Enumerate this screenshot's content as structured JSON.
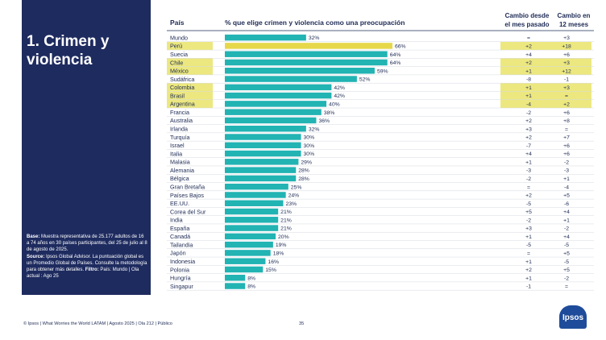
{
  "title": "1. Crimen y violencia",
  "notes": {
    "base_label": "Base:",
    "base_text": "Muestra representativa de 25.177 adultos de 16 a 74 años en 30 países participantes, del 25 de julio al 8 de agosto de 2025.",
    "source_label": "Source:",
    "source_text": "Ipsos Global Advisor. La puntuación global es un Promedio Global de Países. Consulte la metodología para obtener más detalles.",
    "filter_label": "Filtro:",
    "filter_text": "País: Mundo | Ola actual : Ago 25"
  },
  "footer": {
    "text": "© Ipsos | What Worries the World LATAM | Agosto 2025 | Ola 212 | Público",
    "page": "35"
  },
  "logo_text": "Ipsos",
  "colors": {
    "sidebar": "#1e2b5f",
    "bar": "#22b3b3",
    "bar_highlight": "#e6d84a",
    "row_highlight": "#ece87f",
    "text": "#1e2b55"
  },
  "chart_data": {
    "type": "bar",
    "orientation": "horizontal",
    "headers": {
      "country": "País",
      "bar": "% que elige crimen y violencia como una preocupación",
      "change_month_line1": "Cambio desde",
      "change_month_line2": "el mes pasado",
      "change_year_line1": "Cambio in",
      "change_year_line2": "12 meses"
    },
    "categories": [
      "Mundo",
      "Perú",
      "Suecia",
      "Chile",
      "México",
      "Sudáfrica",
      "Colombia",
      "Brasil",
      "Argentina",
      "Francia",
      "Australia",
      "Irlanda",
      "Turquía",
      "Israel",
      "Italia",
      "Malasia",
      "Alemania",
      "Bélgica",
      "Gran Bretaña",
      "Países Bajos",
      "EE.UU.",
      "Corea del Sur",
      "India",
      "España",
      "Canadá",
      "Tailandia",
      "Japón",
      "Indonesia",
      "Polonia",
      "Hungría",
      "Singapur"
    ],
    "values": [
      32,
      66,
      64,
      64,
      59,
      52,
      42,
      42,
      40,
      38,
      36,
      32,
      30,
      30,
      30,
      29,
      28,
      28,
      25,
      24,
      23,
      21,
      21,
      21,
      20,
      19,
      18,
      16,
      15,
      8,
      8
    ],
    "value_labels": [
      "32%",
      "66%",
      "64%",
      "64%",
      "59%",
      "52%",
      "42%",
      "42%",
      "40%",
      "38%",
      "36%",
      "32%",
      "30%",
      "30%",
      "30%",
      "29%",
      "28%",
      "28%",
      "25%",
      "24%",
      "23%",
      "21%",
      "21%",
      "21%",
      "20%",
      "19%",
      "18%",
      "16%",
      "15%",
      "8%",
      "8%"
    ],
    "highlighted": [
      false,
      true,
      false,
      true,
      true,
      false,
      true,
      true,
      true,
      false,
      false,
      false,
      false,
      false,
      false,
      false,
      false,
      false,
      false,
      false,
      false,
      false,
      false,
      false,
      false,
      false,
      false,
      false,
      false,
      false,
      false
    ],
    "highlighted_bars": [
      false,
      true,
      false,
      false,
      false,
      false,
      false,
      false,
      false,
      false,
      false,
      false,
      false,
      false,
      false,
      false,
      false,
      false,
      false,
      false,
      false,
      false,
      false,
      false,
      false,
      false,
      false,
      false,
      false,
      false,
      false
    ],
    "change_month": [
      "=",
      "+2",
      "+4",
      "+2",
      "+1",
      "-8",
      "+1",
      "+1",
      "-4",
      "-2",
      "+2",
      "+3",
      "+2",
      "-7",
      "+4",
      "+1",
      "-3",
      "-2",
      "=",
      "+2",
      "-5",
      "+5",
      "-2",
      "+3",
      "+1",
      "-5",
      "=",
      "+1",
      "+2",
      "+1",
      "-1"
    ],
    "change_year": [
      "+3",
      "+18",
      "+6",
      "+3",
      "+12",
      "-1",
      "+3",
      "=",
      "+2",
      "+6",
      "+8",
      "=",
      "+7",
      "+6",
      "+6",
      "-2",
      "-3",
      "+1",
      "-4",
      "+5",
      "-6",
      "+4",
      "+1",
      "-2",
      "+4",
      "-5",
      "+5",
      "-5",
      "+5",
      "-2",
      "="
    ],
    "xlim": [
      0,
      100
    ]
  }
}
